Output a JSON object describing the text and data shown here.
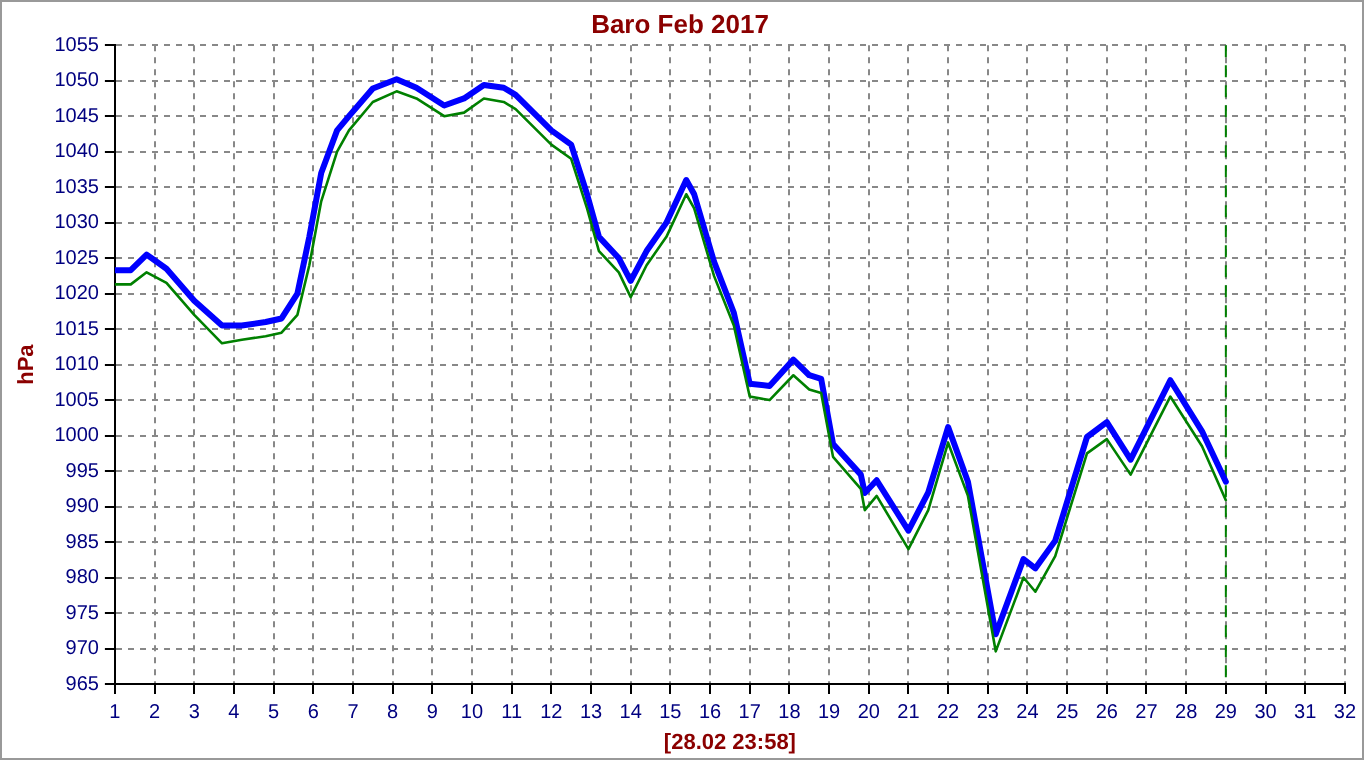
{
  "chart_data": {
    "type": "line",
    "title": "Baro Feb 2017",
    "ylabel": "hPa",
    "annotations": [
      "[28.02 23:58]"
    ],
    "xlim": [
      1,
      32
    ],
    "xticks": [
      1,
      2,
      3,
      4,
      5,
      6,
      7,
      8,
      9,
      10,
      11,
      12,
      13,
      14,
      15,
      16,
      17,
      18,
      19,
      20,
      21,
      22,
      23,
      24,
      25,
      26,
      27,
      28,
      29,
      30,
      31,
      32
    ],
    "ylim": [
      965,
      1055
    ],
    "yticks": [
      965,
      970,
      975,
      980,
      985,
      990,
      995,
      1000,
      1005,
      1010,
      1015,
      1020,
      1025,
      1030,
      1035,
      1040,
      1045,
      1050,
      1055
    ],
    "grid": true,
    "legend": false,
    "marker": "none",
    "line_style": "solid",
    "ref_lines": [
      {
        "axis": "x",
        "value": 29,
        "color": "#008000",
        "line_style": "dashed"
      }
    ],
    "series": [
      {
        "color": "#008000",
        "x": [
          1,
          1.4,
          1.8,
          2.3,
          3.0,
          3.7,
          4.2,
          4.8,
          5.2,
          5.6,
          5.9,
          6.2,
          6.6,
          6.9,
          7.5,
          8.1,
          8.6,
          9.3,
          9.8,
          10.3,
          10.8,
          11.1,
          12.0,
          12.5,
          12.9,
          13.2,
          13.7,
          14.0,
          14.4,
          14.9,
          15.4,
          15.6,
          16.1,
          16.6,
          17.0,
          17.5,
          18.1,
          18.5,
          18.8,
          19.1,
          19.8,
          19.9,
          20.2,
          21.0,
          21.5,
          22.0,
          22.5,
          23.2,
          23.9,
          24.2,
          24.7,
          25.5,
          26.0,
          26.6,
          27.6,
          28.4,
          29.0
        ],
        "values": [
          1021.3,
          1021.3,
          1023,
          1021.5,
          1017,
          1013,
          1013.5,
          1014,
          1014.5,
          1017,
          1024,
          1033,
          1040,
          1043,
          1047,
          1048.5,
          1047.5,
          1045,
          1045.5,
          1047.5,
          1047,
          1046,
          1041,
          1039,
          1032,
          1026,
          1023,
          1019.5,
          1024,
          1028,
          1034,
          1032,
          1022.5,
          1015.5,
          1005.5,
          1005,
          1008.5,
          1006.5,
          1006,
          997,
          992.5,
          989.5,
          991.5,
          984,
          989.5,
          999,
          991.5,
          969.6,
          980,
          978,
          983,
          997.5,
          999.5,
          994.5,
          1005.5,
          998.5,
          990.9
        ]
      },
      {
        "color": "#0000ff",
        "x": [
          1,
          1.4,
          1.8,
          2.3,
          3.0,
          3.7,
          4.2,
          4.8,
          5.2,
          5.6,
          5.9,
          6.2,
          6.6,
          6.9,
          7.5,
          8.1,
          8.6,
          9.3,
          9.8,
          10.3,
          10.8,
          11.1,
          12.0,
          12.5,
          12.9,
          13.2,
          13.7,
          14.0,
          14.4,
          14.9,
          15.4,
          15.6,
          16.1,
          16.6,
          17.0,
          17.5,
          18.1,
          18.5,
          18.8,
          19.1,
          19.8,
          19.9,
          20.2,
          21.0,
          21.5,
          22.0,
          22.5,
          23.2,
          23.9,
          24.2,
          24.7,
          25.5,
          26.0,
          26.6,
          27.6,
          28.4,
          29.0
        ],
        "values": [
          1023.3,
          1023.3,
          1025.5,
          1023.5,
          1019,
          1015.5,
          1015.5,
          1016,
          1016.5,
          1020,
          1028,
          1037,
          1043,
          1045,
          1048.9,
          1050.2,
          1049,
          1046.5,
          1047.5,
          1049.4,
          1049,
          1048,
          1043,
          1041,
          1034,
          1028,
          1025,
          1021.8,
          1026,
          1030,
          1036,
          1034,
          1024.5,
          1017.3,
          1007.3,
          1007,
          1010.7,
          1008.5,
          1008,
          998.8,
          994.5,
          991.9,
          993.7,
          986.6,
          992,
          1001.2,
          993.5,
          972,
          982.6,
          981.3,
          985.2,
          999.8,
          1001.9,
          996.6,
          1007.8,
          1000.6,
          993.5
        ]
      }
    ]
  }
}
